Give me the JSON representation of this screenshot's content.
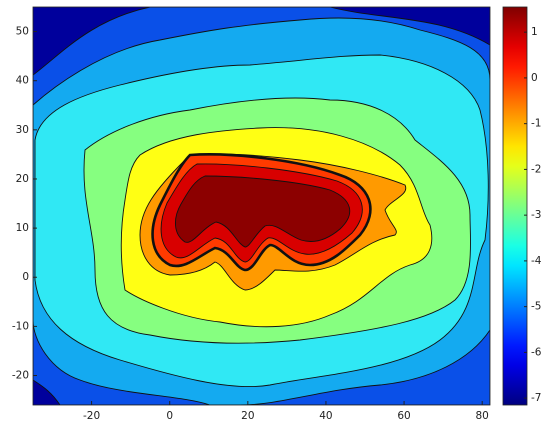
{
  "chart_data": {
    "type": "contourf",
    "xlim": [
      -35,
      82
    ],
    "xticks": [
      -20,
      0,
      20,
      40,
      60,
      80
    ],
    "ylim": [
      -26,
      55
    ],
    "yticks": [
      -20,
      -10,
      0,
      10,
      20,
      30,
      40,
      50
    ],
    "background_color": "#00009c",
    "levels": [
      -6.5,
      -5.6,
      -4.7,
      -3.8,
      -2.9,
      -2.0,
      -1.1,
      -0.2,
      0.7
    ],
    "level_colors": [
      "#0a50e8",
      "#14aaf0",
      "#30e8f4",
      "#86ff80",
      "#ffff14",
      "#ff9a00",
      "#ff3a00",
      "#d80000",
      "#8c0000"
    ],
    "colormap": "jet",
    "clim": [
      -7.15,
      1.55
    ],
    "cticks": [
      -7,
      -6,
      -5,
      -4,
      -3,
      -2,
      -1,
      0,
      1
    ]
  }
}
